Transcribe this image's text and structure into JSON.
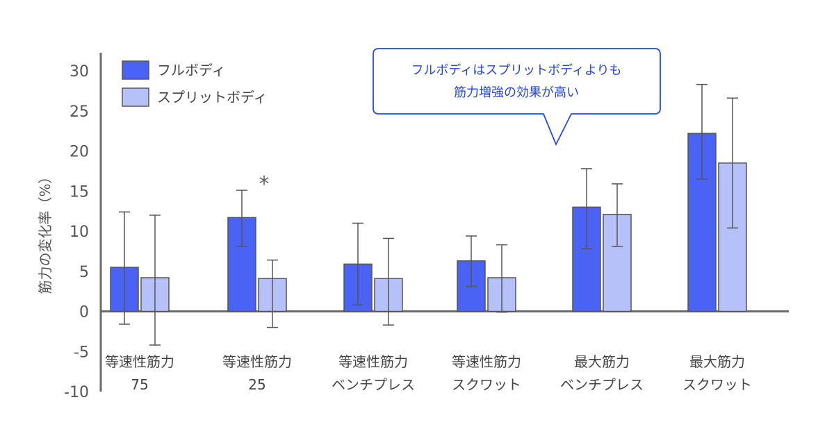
{
  "chart_data": {
    "type": "bar",
    "ylabel": "筋力の変化率（%）",
    "ylim": [
      -10,
      30
    ],
    "yticks": [
      "30",
      "25",
      "20",
      "15",
      "10",
      "5",
      "0",
      "-5",
      "-10"
    ],
    "categories": [
      [
        "等速性筋力",
        "75"
      ],
      [
        "等速性筋力",
        "25"
      ],
      [
        "等速性筋力",
        "ベンチプレス"
      ],
      [
        "等速性筋力",
        "スクワット"
      ],
      [
        "最大筋力",
        "ベンチプレス"
      ],
      [
        "最大筋力",
        "スクワット"
      ]
    ],
    "series": [
      {
        "name": "フルボディ",
        "color": "#4a63f5",
        "values": [
          5.5,
          11.7,
          5.9,
          6.3,
          13.0,
          22.2
        ],
        "err_low": [
          -1.6,
          8.1,
          0.8,
          3.1,
          7.8,
          16.5
        ],
        "err_high": [
          12.4,
          15.1,
          11.0,
          9.4,
          17.8,
          28.3
        ]
      },
      {
        "name": "スプリットボディ",
        "color": "#b7c1f9",
        "values": [
          4.2,
          4.1,
          4.1,
          4.2,
          12.1,
          18.5
        ],
        "err_low": [
          -4.2,
          -2.0,
          -1.7,
          -0.1,
          8.1,
          10.4
        ],
        "err_high": [
          12.0,
          6.4,
          9.1,
          8.3,
          15.9,
          26.6
        ]
      }
    ],
    "significance": [
      {
        "category_index": 1,
        "mark": "*"
      }
    ],
    "annotation": [
      "フルボディはスプリットボディよりも",
      "筋力増強の効果が高い"
    ],
    "legend_position": "top-left",
    "grid": false
  }
}
